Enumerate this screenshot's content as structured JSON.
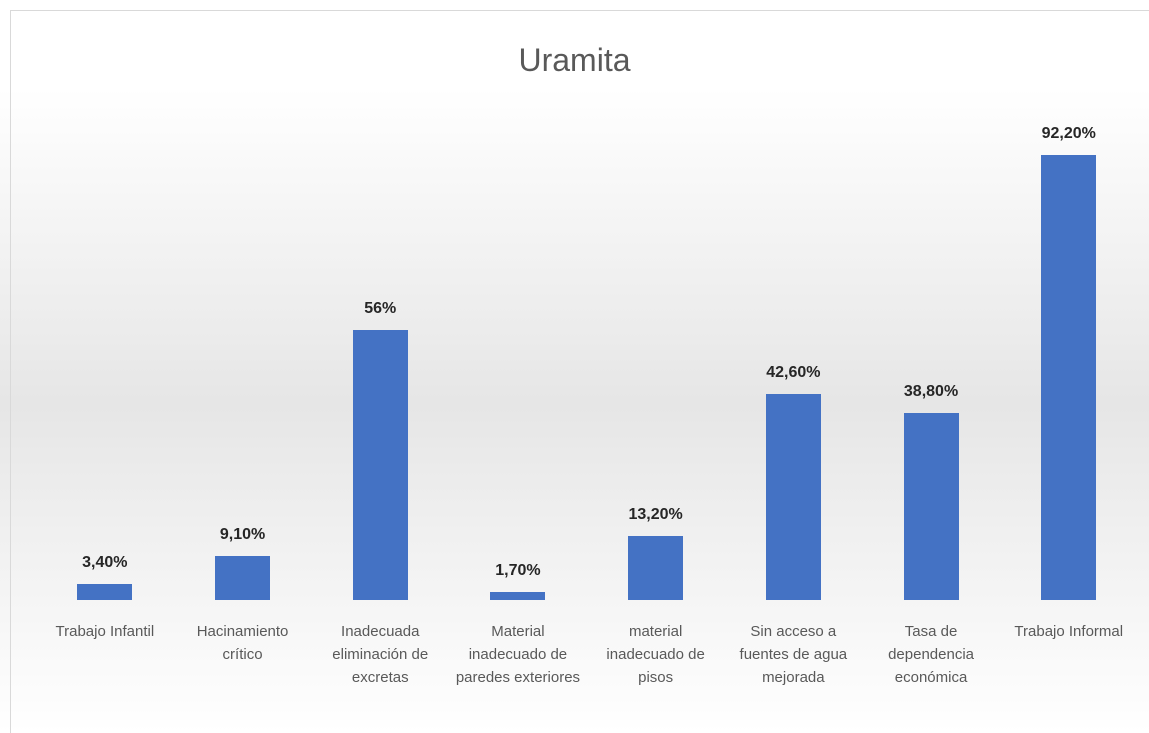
{
  "chart_data": {
    "type": "bar",
    "title": "Uramita",
    "categories": [
      "Trabajo Infantil",
      "Hacinamiento crítico",
      "Inadecuada eliminación de excretas",
      "Material inadecuado de paredes exteriores",
      "material inadecuado de pisos",
      "Sin acceso a fuentes de agua mejorada",
      "Tasa de dependencia económica",
      "Trabajo Informal"
    ],
    "values": [
      3.4,
      9.1,
      56,
      1.7,
      13.2,
      42.6,
      38.8,
      92.2
    ],
    "value_labels": [
      "3,40%",
      "9,10%",
      "56%",
      "1,70%",
      "13,20%",
      "42,60%",
      "38,80%",
      "92,20%"
    ],
    "color": "#4472c4"
  }
}
